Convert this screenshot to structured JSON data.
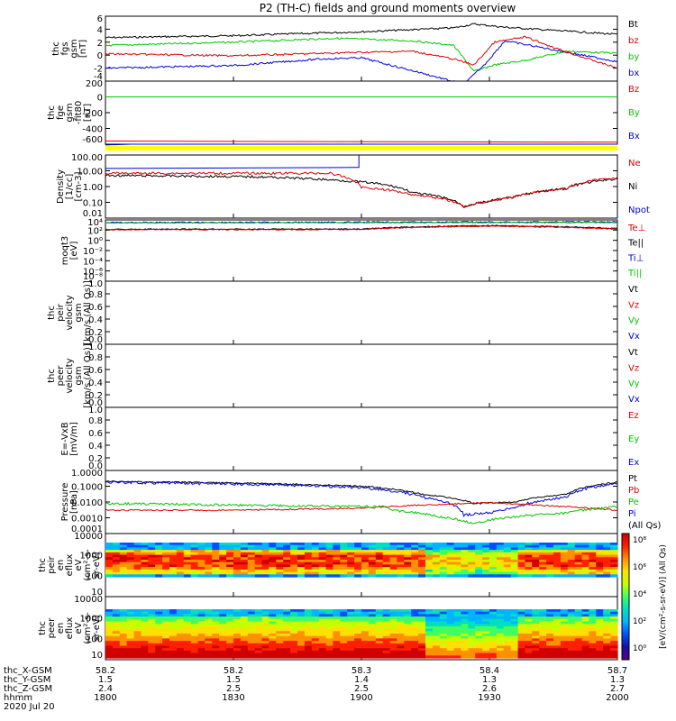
{
  "title": "P2 (TH-C) fields and ground moments overview",
  "colors": {
    "black": "#000000",
    "red": "#e00000",
    "green": "#00c800",
    "blue": "#0000e0",
    "yellow": "#ffff00"
  },
  "panels": [
    {
      "id": "fgs",
      "ylabel": [
        "thc",
        "fgs",
        "gsm",
        "[nT]"
      ],
      "ticks": [
        "6",
        "4",
        "2",
        "0",
        "-2",
        "-4"
      ],
      "legend": [
        {
          "t": "Bt",
          "c": "black"
        },
        {
          "t": "bz",
          "c": "red"
        },
        {
          "t": "by",
          "c": "green"
        },
        {
          "t": "bx",
          "c": "blue"
        }
      ]
    },
    {
      "id": "fge",
      "ylabel": [
        "thc",
        "fge",
        "gsm",
        "-fit80",
        "[nT]"
      ],
      "ticks": [
        "200",
        "0",
        "-200",
        "-400",
        "-600"
      ],
      "legend": [
        {
          "t": "Bz",
          "c": "red"
        },
        {
          "t": "By",
          "c": "green"
        },
        {
          "t": "Bx",
          "c": "blue"
        }
      ]
    },
    {
      "id": "density",
      "ylabel": [
        "Density",
        "[1/cc]",
        "[cm-3]"
      ],
      "ticks": [
        "100.00",
        "10.00",
        "1.00",
        "0.10",
        "0.01"
      ],
      "legend": [
        {
          "t": "Ne",
          "c": "red"
        },
        {
          "t": "Ni",
          "c": "black"
        },
        {
          "t": "Npot",
          "c": "blue"
        }
      ]
    },
    {
      "id": "temp",
      "ylabel": [
        "moqt3",
        "[eV]"
      ],
      "ticks": [
        "10⁴",
        "10²",
        "10⁰",
        "10⁻²",
        "10⁻⁴",
        "10⁻⁶",
        "10⁻⁸"
      ],
      "legend": [
        {
          "t": "Te⊥",
          "c": "red"
        },
        {
          "t": "Te||",
          "c": "black"
        },
        {
          "t": "Ti⊥",
          "c": "blue"
        },
        {
          "t": "Ti||",
          "c": "green"
        }
      ]
    },
    {
      "id": "vi",
      "ylabel": [
        "thc",
        "peir",
        "velocity",
        "gsm",
        "[km/s (All Qs)]"
      ],
      "ticks": [
        "1.0",
        "0.8",
        "0.6",
        "0.4",
        "0.2",
        "0.0"
      ],
      "legend": [
        {
          "t": "Vt",
          "c": "black"
        },
        {
          "t": "Vz",
          "c": "red"
        },
        {
          "t": "Vy",
          "c": "green"
        },
        {
          "t": "Vx",
          "c": "blue"
        }
      ]
    },
    {
      "id": "ve",
      "ylabel": [
        "thc",
        "peer",
        "velocity",
        "gsm",
        "[km/s (All Qs)]"
      ],
      "ticks": [
        "1.0",
        "0.8",
        "0.6",
        "0.4",
        "0.2",
        "0.0"
      ],
      "legend": [
        {
          "t": "Vt",
          "c": "black"
        },
        {
          "t": "Vz",
          "c": "red"
        },
        {
          "t": "Vy",
          "c": "green"
        },
        {
          "t": "Vx",
          "c": "blue"
        }
      ]
    },
    {
      "id": "efield",
      "ylabel": [
        "E=-VxB",
        "[mV/m]"
      ],
      "ticks": [
        "1.0",
        "0.8",
        "0.6",
        "0.4",
        "0.2",
        "0.0"
      ],
      "legend": [
        {
          "t": "Ez",
          "c": "red"
        },
        {
          "t": "Ey",
          "c": "green"
        },
        {
          "t": "Ex",
          "c": "blue"
        }
      ]
    },
    {
      "id": "pressure",
      "ylabel": [
        "Pressure",
        "[nPa]"
      ],
      "ticks": [
        "1.0000",
        "0.1000",
        "0.0100",
        "0.0010",
        "0.0001"
      ],
      "legend": [
        {
          "t": "Pt",
          "c": "black"
        },
        {
          "t": "Pb",
          "c": "red"
        },
        {
          "t": "Pe",
          "c": "green"
        },
        {
          "t": "Pi",
          "c": "blue"
        },
        {
          "t": "(All Qs)",
          "c": "black"
        }
      ]
    },
    {
      "id": "ispec",
      "ylabel": [
        "thc",
        "peir",
        "en",
        "eflux",
        "eV",
        "(cm²-s-",
        "sr-eV)"
      ],
      "ticks": [
        "10000",
        "1000",
        "100",
        "10"
      ],
      "legend": []
    },
    {
      "id": "espec",
      "ylabel": [
        "thc",
        "peer",
        "en",
        "eflux",
        "eV",
        "(cm²-s-",
        "sr-eV)"
      ],
      "ticks": [
        "10000",
        "1000",
        "100",
        "10"
      ],
      "legend": []
    }
  ],
  "colorbar": {
    "label": "[eV/(cm²-s-sr-eV)] (All Qs)",
    "ticks": [
      "10⁸",
      "10⁶",
      "10⁴",
      "10²",
      "10⁰"
    ]
  },
  "xaxis": {
    "row_labels": [
      "thc_X-GSM",
      "thc_Y-GSM",
      "thc_Z-GSM",
      "hhmm",
      "2020 Jul 20"
    ],
    "columns": [
      [
        "58.2",
        "1.5",
        "2.4",
        "1800"
      ],
      [
        "58.2",
        "1.5",
        "2.5",
        "1830"
      ],
      [
        "58.3",
        "1.4",
        "2.5",
        "1900"
      ],
      [
        "58.4",
        "1.3",
        "2.6",
        "1930"
      ],
      [
        "58.7",
        "1.3",
        "2.7",
        "2000"
      ]
    ]
  },
  "chart_data": {
    "type": "line",
    "title": "P2 (TH-C) fields and ground moments overview",
    "x_time_labels": [
      "1800",
      "1830",
      "1900",
      "1930",
      "2000"
    ],
    "series_fgs": [
      {
        "name": "Bt",
        "x": [
          "1800",
          "1830",
          "1900",
          "1920",
          "1930",
          "2000"
        ],
        "values": [
          2.7,
          3.0,
          3.6,
          4.8,
          4.3,
          3.2
        ]
      },
      {
        "name": "bz",
        "x": [
          "1800",
          "1830",
          "1900",
          "1920",
          "1930",
          "2000"
        ],
        "values": [
          0.2,
          -0.1,
          0.6,
          -1.0,
          2.5,
          -2.2
        ]
      },
      {
        "name": "by",
        "x": [
          "1800",
          "1830",
          "1900",
          "1920",
          "1930",
          "2000"
        ],
        "values": [
          1.5,
          2.0,
          2.8,
          1.0,
          2.6,
          0.6
        ]
      },
      {
        "name": "bx",
        "x": [
          "1800",
          "1830",
          "1900",
          "1920",
          "1930",
          "2000"
        ],
        "values": [
          -2.0,
          -1.7,
          -0.2,
          -4.5,
          1.5,
          -1.0
        ]
      }
    ],
    "series_density_cc": [
      {
        "name": "Ne",
        "x": [
          "1800",
          "1830",
          "1900",
          "1910",
          "1920",
          "1930",
          "2000"
        ],
        "values": [
          5.0,
          5.0,
          5.0,
          1.0,
          0.05,
          0.1,
          2.5
        ]
      },
      {
        "name": "Ni",
        "x": [
          "1800",
          "1830",
          "1900",
          "1920",
          "1930",
          "2000"
        ],
        "values": [
          3.5,
          2.8,
          1.5,
          0.05,
          0.1,
          2.0
        ]
      },
      {
        "name": "Npot",
        "x": [
          "1800",
          "1830",
          "1858",
          "1859"
        ],
        "values": [
          11,
          12,
          13,
          200
        ]
      }
    ],
    "series_pressure_npa": [
      {
        "name": "Pt",
        "x": [
          "1800",
          "1830",
          "1900",
          "1920",
          "1930",
          "2000"
        ],
        "values": [
          0.2,
          0.15,
          0.1,
          0.01,
          0.008,
          0.15
        ]
      },
      {
        "name": "Pb",
        "x": [
          "1800",
          "1830",
          "1900",
          "1920",
          "1930",
          "2000"
        ],
        "values": [
          0.003,
          0.003,
          0.004,
          0.01,
          0.008,
          0.004
        ]
      },
      {
        "name": "Pe",
        "x": [
          "1800",
          "1830",
          "1900",
          "1920",
          "1930",
          "2000"
        ],
        "values": [
          0.008,
          0.006,
          0.005,
          0.0005,
          0.001,
          0.005
        ]
      },
      {
        "name": "Pi",
        "x": [
          "1800",
          "1830",
          "1900",
          "1920",
          "1930",
          "2000"
        ],
        "values": [
          0.18,
          0.13,
          0.08,
          0.002,
          0.003,
          0.12
        ]
      }
    ]
  }
}
